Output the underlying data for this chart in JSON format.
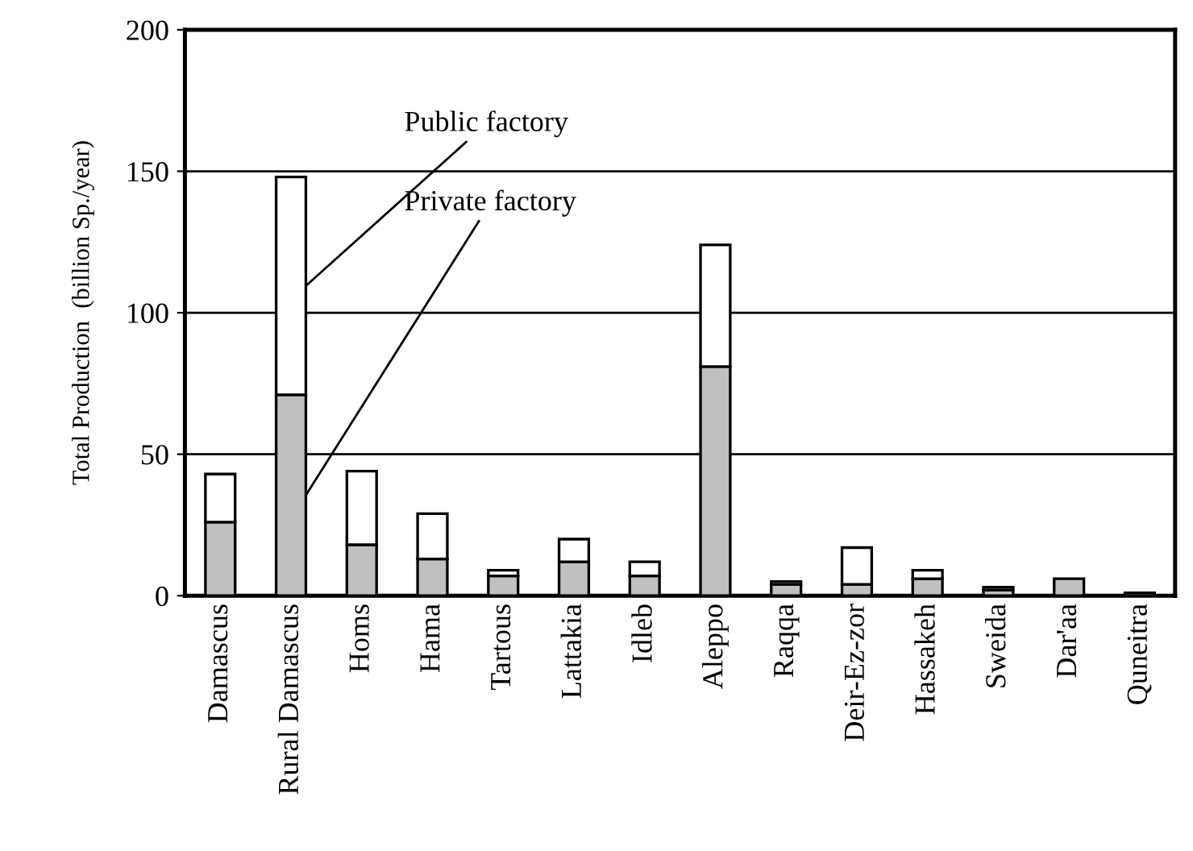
{
  "chart_data": {
    "type": "bar",
    "stacked": true,
    "ylabel": "Total Production  (billion Sp./year)",
    "categories": [
      "Damascus",
      "Rural Damascus",
      "Homs",
      "Hama",
      "Tartous",
      "Lattakia",
      "Idleb",
      "Aleppo",
      "Raqqa",
      "Deir-Ez-zor",
      "Hassakeh",
      "Sweida",
      "Dar'aa",
      "Quneitra"
    ],
    "series": [
      {
        "name": "Private factory",
        "color": "#c0c0c0",
        "values": [
          26,
          71,
          18,
          13,
          7,
          12,
          7,
          81,
          4,
          4,
          6,
          2,
          6,
          1
        ]
      },
      {
        "name": "Public factory",
        "color": "#ffffff",
        "values": [
          17,
          77,
          26,
          16,
          2,
          8,
          5,
          43,
          1,
          13,
          3,
          1,
          0,
          0
        ]
      }
    ],
    "ylim": [
      0,
      200
    ],
    "yticks": [
      0,
      50,
      100,
      150,
      200
    ],
    "grid": "y",
    "legend": false
  }
}
